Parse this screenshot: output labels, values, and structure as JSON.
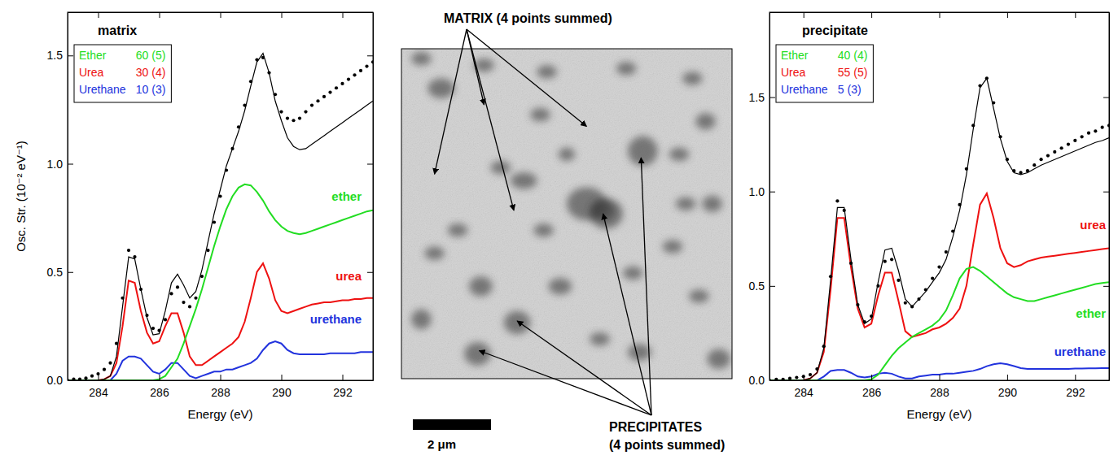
{
  "chart_data": [
    {
      "type": "line",
      "title": "matrix",
      "x_label": "Energy (eV)",
      "y_label": "Osc. Str. (10⁻² eV⁻¹)",
      "x": [
        283,
        283.2,
        283.4,
        283.6,
        283.8,
        284,
        284.2,
        284.4,
        284.6,
        284.8,
        285,
        285.2,
        285.4,
        285.6,
        285.8,
        286,
        286.2,
        286.4,
        286.6,
        286.8,
        287,
        287.2,
        287.4,
        287.6,
        287.8,
        288,
        288.2,
        288.4,
        288.6,
        288.8,
        289,
        289.2,
        289.4,
        289.6,
        289.8,
        290,
        290.2,
        290.4,
        290.6,
        290.8,
        291,
        291.2,
        291.4,
        291.6,
        291.8,
        292,
        292.2,
        292.4,
        292.6,
        292.8,
        293
      ],
      "xlim": [
        283,
        293
      ],
      "xticks": [
        284,
        286,
        288,
        290,
        292
      ],
      "ylim": [
        0,
        1.7
      ],
      "yticks": [
        {
          "value": 0,
          "label": "0.0"
        },
        0.5,
        {
          "value": 1,
          "label": "1.0"
        },
        1.5
      ],
      "grid": false,
      "legend": "top-left",
      "series": [
        {
          "color": "#000000",
          "marker": "circle",
          "line_style": "none",
          "values": [
            0,
            0.005,
            0.005,
            0.01,
            0.02,
            0.03,
            0.05,
            0.08,
            0.17,
            0.38,
            0.6,
            0.57,
            0.42,
            0.3,
            0.24,
            0.23,
            0.28,
            0.4,
            0.43,
            0.36,
            0.34,
            0.38,
            0.48,
            0.6,
            0.73,
            0.85,
            0.97,
            1.07,
            1.17,
            1.27,
            1.38,
            1.48,
            1.49,
            1.42,
            1.32,
            1.24,
            1.21,
            1.2,
            1.21,
            1.24,
            1.27,
            1.29,
            1.31,
            1.33,
            1.35,
            1.37,
            1.39,
            1.41,
            1.43,
            1.45,
            1.47
          ]
        },
        {
          "color": "#000000",
          "marker": "none",
          "line_style": "solid",
          "values": [
            0,
            0,
            0,
            0,
            0,
            0,
            0.005,
            0.02,
            0.11,
            0.34,
            0.57,
            0.56,
            0.42,
            0.29,
            0.21,
            0.215,
            0.32,
            0.45,
            0.49,
            0.44,
            0.38,
            0.41,
            0.51,
            0.64,
            0.77,
            0.88,
            0.99,
            1.07,
            1.15,
            1.245,
            1.36,
            1.47,
            1.51,
            1.42,
            1.29,
            1.2,
            1.12,
            1.08,
            1.065,
            1.07,
            1.09,
            1.11,
            1.13,
            1.15,
            1.17,
            1.19,
            1.21,
            1.23,
            1.25,
            1.27,
            1.29
          ]
        },
        {
          "name": "Ether",
          "label": "ether",
          "share_label": "60 (5)",
          "color": "#22dd22",
          "marker": "none",
          "line_style": "solid",
          "values": [
            0,
            0,
            0,
            0,
            0,
            0,
            0,
            0,
            0,
            0,
            0,
            0,
            0,
            0,
            0,
            0.005,
            0.02,
            0.06,
            0.1,
            0.17,
            0.25,
            0.33,
            0.42,
            0.52,
            0.62,
            0.71,
            0.79,
            0.85,
            0.89,
            0.905,
            0.9,
            0.87,
            0.83,
            0.78,
            0.74,
            0.71,
            0.69,
            0.68,
            0.675,
            0.68,
            0.69,
            0.7,
            0.71,
            0.72,
            0.73,
            0.74,
            0.75,
            0.76,
            0.77,
            0.78,
            0.785
          ]
        },
        {
          "name": "Urea",
          "label": "urea",
          "share_label": "30 (4)",
          "color": "#ee1111",
          "marker": "none",
          "line_style": "solid",
          "values": [
            0,
            0,
            0,
            0,
            0,
            0,
            0.005,
            0.02,
            0.08,
            0.25,
            0.46,
            0.45,
            0.32,
            0.22,
            0.17,
            0.18,
            0.25,
            0.31,
            0.31,
            0.22,
            0.11,
            0.07,
            0.07,
            0.09,
            0.11,
            0.13,
            0.15,
            0.17,
            0.2,
            0.27,
            0.38,
            0.5,
            0.54,
            0.47,
            0.37,
            0.32,
            0.31,
            0.32,
            0.33,
            0.34,
            0.35,
            0.355,
            0.36,
            0.36,
            0.365,
            0.37,
            0.37,
            0.375,
            0.375,
            0.38,
            0.38
          ]
        },
        {
          "name": "Urethane",
          "label": "urethane",
          "share_label": "10 (3)",
          "color": "#2233dd",
          "marker": "none",
          "line_style": "solid",
          "values": [
            0,
            0,
            0,
            0,
            0,
            0,
            0,
            0,
            0.03,
            0.09,
            0.11,
            0.11,
            0.1,
            0.07,
            0.04,
            0.03,
            0.05,
            0.08,
            0.08,
            0.05,
            0.02,
            0.01,
            0.02,
            0.03,
            0.04,
            0.04,
            0.05,
            0.05,
            0.06,
            0.07,
            0.08,
            0.1,
            0.14,
            0.17,
            0.18,
            0.17,
            0.14,
            0.125,
            0.12,
            0.12,
            0.12,
            0.12,
            0.12,
            0.125,
            0.125,
            0.125,
            0.125,
            0.125,
            0.13,
            0.13,
            0.13
          ]
        }
      ]
    },
    {
      "type": "image",
      "matrix_label": "MATRIX (4 points summed)",
      "precipitates_label": [
        "PRECIPITATES",
        "(4 points summed)"
      ],
      "scale_bar_label": "2 μm"
    },
    {
      "type": "line",
      "title": "precipitate",
      "x_label": "Energy (eV)",
      "x": [
        283,
        283.2,
        283.4,
        283.6,
        283.8,
        284,
        284.2,
        284.4,
        284.6,
        284.8,
        285,
        285.2,
        285.4,
        285.6,
        285.8,
        286,
        286.2,
        286.4,
        286.6,
        286.8,
        287,
        287.2,
        287.4,
        287.6,
        287.8,
        288,
        288.2,
        288.4,
        288.6,
        288.8,
        289,
        289.2,
        289.4,
        289.6,
        289.8,
        290,
        290.2,
        290.4,
        290.6,
        290.8,
        291,
        291.2,
        291.4,
        291.6,
        291.8,
        292,
        292.2,
        292.4,
        292.6,
        292.8,
        293
      ],
      "xlim": [
        283,
        293
      ],
      "xticks": [
        284,
        286,
        288,
        290,
        292
      ],
      "ylim": [
        0,
        1.95
      ],
      "yticks": [
        {
          "value": 0,
          "label": "0.0"
        },
        0.5,
        {
          "value": 1,
          "label": "1.0"
        },
        1.5
      ],
      "grid": false,
      "legend": "top-left",
      "series": [
        {
          "color": "#000000",
          "marker": "circle",
          "line_style": "none",
          "values": [
            0,
            0.005,
            0.005,
            0.01,
            0.015,
            0.02,
            0.03,
            0.06,
            0.18,
            0.55,
            0.95,
            0.9,
            0.62,
            0.4,
            0.31,
            0.34,
            0.5,
            0.63,
            0.64,
            0.53,
            0.41,
            0.39,
            0.43,
            0.48,
            0.54,
            0.6,
            0.68,
            0.79,
            0.93,
            1.12,
            1.35,
            1.56,
            1.6,
            1.47,
            1.29,
            1.17,
            1.11,
            1.1,
            1.11,
            1.14,
            1.17,
            1.19,
            1.21,
            1.23,
            1.25,
            1.27,
            1.29,
            1.31,
            1.32,
            1.34,
            1.35
          ]
        },
        {
          "color": "#000000",
          "marker": "none",
          "line_style": "solid",
          "values": [
            0,
            0,
            0,
            0,
            0,
            0,
            0.01,
            0.04,
            0.17,
            0.53,
            0.915,
            0.915,
            0.64,
            0.4,
            0.3,
            0.325,
            0.52,
            0.69,
            0.7,
            0.58,
            0.43,
            0.39,
            0.43,
            0.47,
            0.52,
            0.57,
            0.64,
            0.76,
            0.9,
            1.09,
            1.33,
            1.55,
            1.6,
            1.44,
            1.28,
            1.16,
            1.1,
            1.09,
            1.1,
            1.12,
            1.14,
            1.155,
            1.17,
            1.185,
            1.2,
            1.215,
            1.23,
            1.245,
            1.26,
            1.27,
            1.285
          ]
        },
        {
          "name": "Ether",
          "label": "ether",
          "share_label": "40 (4)",
          "color": "#22dd22",
          "marker": "none",
          "line_style": "solid",
          "values": [
            0,
            0,
            0,
            0,
            0,
            0,
            0,
            0,
            0,
            0,
            0,
            0,
            0,
            0,
            0,
            0.005,
            0.03,
            0.08,
            0.13,
            0.17,
            0.2,
            0.23,
            0.25,
            0.27,
            0.29,
            0.32,
            0.37,
            0.45,
            0.54,
            0.59,
            0.6,
            0.58,
            0.55,
            0.52,
            0.49,
            0.46,
            0.44,
            0.43,
            0.42,
            0.42,
            0.43,
            0.44,
            0.45,
            0.46,
            0.47,
            0.48,
            0.49,
            0.5,
            0.51,
            0.515,
            0.52
          ]
        },
        {
          "name": "Urea",
          "label": "urea",
          "share_label": "55 (5)",
          "color": "#ee1111",
          "marker": "none",
          "line_style": "solid",
          "values": [
            0,
            0,
            0,
            0,
            0,
            0,
            0.01,
            0.04,
            0.15,
            0.48,
            0.86,
            0.86,
            0.6,
            0.38,
            0.28,
            0.3,
            0.45,
            0.57,
            0.57,
            0.42,
            0.26,
            0.23,
            0.24,
            0.25,
            0.27,
            0.28,
            0.3,
            0.33,
            0.38,
            0.5,
            0.72,
            0.93,
            0.99,
            0.86,
            0.7,
            0.62,
            0.6,
            0.61,
            0.63,
            0.64,
            0.65,
            0.655,
            0.66,
            0.665,
            0.67,
            0.675,
            0.68,
            0.685,
            0.69,
            0.695,
            0.7
          ]
        },
        {
          "name": "Urethane",
          "label": "urethane",
          "share_label": "5 (3)",
          "color": "#2233dd",
          "marker": "none",
          "line_style": "solid",
          "values": [
            0,
            0,
            0,
            0,
            0,
            0,
            0,
            0,
            0.02,
            0.05,
            0.055,
            0.055,
            0.04,
            0.02,
            0.015,
            0.02,
            0.035,
            0.04,
            0.035,
            0.02,
            0.01,
            0.01,
            0.02,
            0.025,
            0.03,
            0.03,
            0.035,
            0.035,
            0.04,
            0.045,
            0.05,
            0.06,
            0.075,
            0.085,
            0.09,
            0.085,
            0.075,
            0.065,
            0.06,
            0.06,
            0.06,
            0.06,
            0.06,
            0.06,
            0.06,
            0.062,
            0.062,
            0.063,
            0.064,
            0.065,
            0.065
          ]
        }
      ]
    }
  ]
}
